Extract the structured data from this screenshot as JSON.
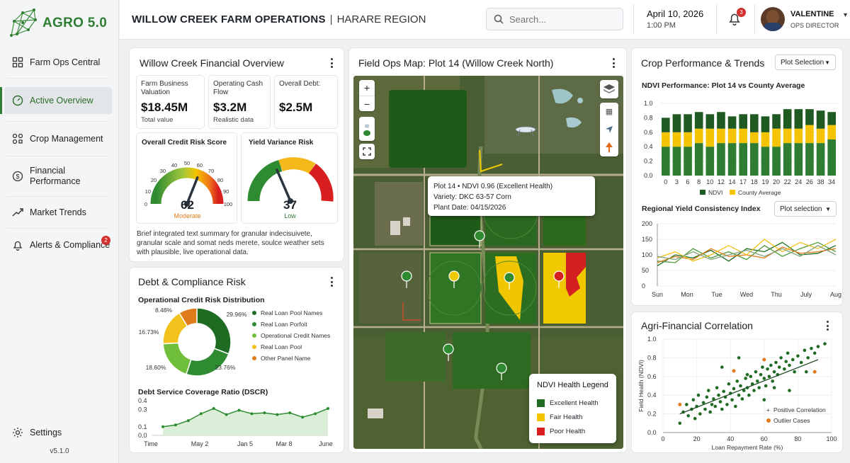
{
  "app": {
    "logo_text": "AGRO 5.0",
    "version": "v5.1.0"
  },
  "sidebar": {
    "items": [
      {
        "label": "Farm Ops Central",
        "icon": "grid-icon"
      },
      {
        "label": "Active Overview",
        "icon": "gauge-icon",
        "active": true
      },
      {
        "label": "Crop Management",
        "icon": "crop-icon"
      },
      {
        "label": "Financial Performance",
        "icon": "dollar-icon"
      },
      {
        "label": "Market Trends",
        "icon": "trend-icon"
      },
      {
        "label": "Alerts & Compliance",
        "icon": "bell-icon",
        "badge": "2"
      }
    ],
    "settings_label": "Settings"
  },
  "header": {
    "title": "WILLOW CREEK FARM OPERATIONS",
    "region": "HARARE REGION",
    "search_placeholder": "Search...",
    "date": "April 10, 2026",
    "time": "1:00 PM",
    "notification_count": "3",
    "user_name": "VALENTINE",
    "user_role": "OPS DIRECTOR"
  },
  "financial": {
    "title": "Willow Creek Financial Overview",
    "kpis": [
      {
        "label": "Farm Business Valuation",
        "value": "$18.45M",
        "sub": "Total value"
      },
      {
        "label": "Operating Cash Flow",
        "value": "$3.2M",
        "sub": "Realistic data"
      },
      {
        "label": "Overall Debt:",
        "value": "$2.5M",
        "sub": ""
      }
    ],
    "credit_gauge": {
      "title": "Overall Credit Risk Score",
      "value": "62",
      "status": "Moderate",
      "ticks": [
        "0",
        "10",
        "20",
        "30",
        "40",
        "50",
        "60",
        "70",
        "80",
        "90",
        "100"
      ],
      "level": 62
    },
    "yield_gauge": {
      "title": "Yield Variance Risk",
      "value": "37",
      "status": "Low",
      "level": 37
    },
    "summary": "Brief integrated text summary for granular indecisuivete, granular scale and somat neds merete, soulce weather sets with plausible, live operational data."
  },
  "debt": {
    "title": "Debt & Compliance Risk",
    "donut_title": "Operational Credit Risk Distribution",
    "dscr_title": "Debt Service Coverage Ratio (DSCR)"
  },
  "map": {
    "title": "Field Ops Map: Plot 14 (Willow Creek North)",
    "popup": {
      "line1": "Plot 14 • NDVI 0.96 (Excellent Health)",
      "line2": "Variety: DKC 63-57 Corn",
      "line3": "Plant Date: 04/15/2026"
    },
    "legend_title": "NDVI Health Legend",
    "legend": [
      {
        "label": "Excellent Health",
        "color": "#1f6b21"
      },
      {
        "label": "Fair Health",
        "color": "#f5c400"
      },
      {
        "label": "Poor Health",
        "color": "#d81e1e"
      }
    ],
    "zoom_in": "+",
    "zoom_out": "−"
  },
  "crop": {
    "title": "Crop Performance & Trends",
    "select_label": "Plot Selection",
    "ndvi_title": "NDVI Performance: Plot 14 vs County Average",
    "consistency_title": "Regional Yield Consistency Index",
    "consistency_select": "Plot selection"
  },
  "correlation": {
    "title": "Agri-Financial Correlation"
  },
  "colors": {
    "accent_green": "#2f7d32",
    "dark_green": "#1e6b22",
    "yellow": "#f5c400",
    "red": "#d81e1e",
    "orange": "#e07b1a"
  },
  "chart_data": [
    {
      "type": "pie",
      "title": "Operational Credit Risk Distribution",
      "slices": [
        {
          "name": "Real Loan Pool Names",
          "value": 29.96,
          "color": "#1e6b22"
        },
        {
          "name": "Real Loan Porfoit",
          "value": 23.76,
          "color": "#2e8b32"
        },
        {
          "name": "Operational Credit Names",
          "value": 18.6,
          "color": "#6fbf3a"
        },
        {
          "name": "Real Loan Pool",
          "value": 16.73,
          "color": "#f3c11b"
        },
        {
          "name": "Other Panel Name",
          "value": 8.48,
          "color": "#e07b1a"
        }
      ],
      "labels": [
        "29.96%",
        "23.76%",
        "18.60%",
        "16.73%",
        "8.48%"
      ]
    },
    {
      "type": "area",
      "title": "Debt Service Coverage Ratio (DSCR)",
      "x_ticks": [
        "Time",
        "May 2",
        "Jan 5",
        "Mar 8",
        "June"
      ],
      "y_ticks": [
        "0.0",
        "0.1",
        "0.3",
        "0.4"
      ],
      "values": [
        0.1,
        0.12,
        0.17,
        0.25,
        0.31,
        0.24,
        0.29,
        0.25,
        0.26,
        0.24,
        0.26,
        0.21,
        0.25,
        0.31
      ],
      "ylim": [
        0,
        0.4
      ]
    },
    {
      "type": "bar",
      "title": "NDVI Performance: Plot 14 vs County Average",
      "categories": [
        "0",
        "3",
        "6",
        "8",
        "10",
        "12",
        "14",
        "17",
        "18",
        "19",
        "20",
        "22",
        "24",
        "26",
        "38",
        "34"
      ],
      "series": [
        {
          "name": "NDVI",
          "values": [
            0.4,
            0.4,
            0.4,
            0.45,
            0.4,
            0.45,
            0.45,
            0.45,
            0.45,
            0.4,
            0.4,
            0.45,
            0.45,
            0.45,
            0.45,
            0.5
          ],
          "color": "#2e7d32"
        },
        {
          "name": "County Average",
          "values": [
            0.2,
            0.2,
            0.2,
            0.2,
            0.25,
            0.2,
            0.2,
            0.2,
            0.15,
            0.2,
            0.25,
            0.2,
            0.2,
            0.25,
            0.2,
            0.2
          ],
          "color": "#f5c400"
        }
      ],
      "top_values": [
        0.8,
        0.85,
        0.85,
        0.88,
        0.85,
        0.88,
        0.82,
        0.85,
        0.85,
        0.82,
        0.85,
        0.92,
        0.92,
        0.92,
        0.9,
        0.88
      ],
      "y_ticks": [
        "0.0",
        "0.2",
        "0.4",
        "0.6",
        "0.8",
        "1.0"
      ],
      "ylim": [
        0,
        1.0
      ],
      "legend_position": "bottom"
    },
    {
      "type": "line",
      "title": "Regional Yield Consistency Index",
      "x_ticks": [
        "Sun",
        "Mon",
        "Tue",
        "Wed",
        "Thu",
        "July",
        "Aug"
      ],
      "y_ticks": [
        "0",
        "50",
        "100",
        "150",
        "200"
      ],
      "ylim": [
        0,
        200
      ],
      "series": [
        {
          "color": "#1e6b22",
          "values": [
            65,
            100,
            90,
            115,
            80,
            120,
            110,
            140,
            100,
            105,
            130
          ]
        },
        {
          "color": "#4e9a3a",
          "values": [
            80,
            75,
            120,
            90,
            110,
            85,
            130,
            95,
            120,
            140,
            110
          ]
        },
        {
          "color": "#e07b1a",
          "values": [
            75,
            95,
            85,
            120,
            95,
            100,
            90,
            125,
            105,
            110,
            120
          ]
        },
        {
          "color": "#f3c11b",
          "values": [
            90,
            110,
            80,
            100,
            130,
            100,
            150,
            110,
            140,
            120,
            150
          ]
        },
        {
          "color": "#7fa37a",
          "values": [
            95,
            85,
            110,
            85,
            100,
            115,
            95,
            120,
            95,
            130,
            100
          ]
        }
      ]
    },
    {
      "type": "scatter",
      "title": "Agri-Financial Correlation",
      "xlabel": "Loan Repayment Rate (%)",
      "ylabel": "Field Health (NDVI)",
      "x_ticks": [
        "0",
        "20",
        "40",
        "60",
        "80",
        "100"
      ],
      "y_ticks": [
        "0.0",
        "0.2",
        "0.4",
        "0.6",
        "0.8",
        "1.0"
      ],
      "xlim": [
        0,
        100
      ],
      "ylim": [
        0,
        1.0
      ],
      "legend": [
        {
          "name": "Positive Correlation",
          "color": "#3a7d44"
        },
        {
          "name": "Outlier Cases",
          "color": "#e07b1a"
        }
      ],
      "trend": [
        [
          10,
          0.2
        ],
        [
          92,
          0.78
        ]
      ],
      "points": [
        [
          10,
          0.1
        ],
        [
          12,
          0.22
        ],
        [
          14,
          0.3
        ],
        [
          15,
          0.18
        ],
        [
          17,
          0.25
        ],
        [
          18,
          0.35
        ],
        [
          19,
          0.15
        ],
        [
          20,
          0.28
        ],
        [
          21,
          0.4
        ],
        [
          22,
          0.2
        ],
        [
          24,
          0.32
        ],
        [
          25,
          0.25
        ],
        [
          26,
          0.38
        ],
        [
          27,
          0.45
        ],
        [
          28,
          0.22
        ],
        [
          29,
          0.3
        ],
        [
          30,
          0.36
        ],
        [
          31,
          0.28
        ],
        [
          32,
          0.48
        ],
        [
          33,
          0.4
        ],
        [
          34,
          0.33
        ],
        [
          35,
          0.25
        ],
        [
          36,
          0.44
        ],
        [
          37,
          0.38
        ],
        [
          38,
          0.3
        ],
        [
          39,
          0.52
        ],
        [
          40,
          0.42
        ],
        [
          41,
          0.35
        ],
        [
          42,
          0.47
        ],
        [
          43,
          0.28
        ],
        [
          44,
          0.55
        ],
        [
          45,
          0.4
        ],
        [
          46,
          0.5
        ],
        [
          47,
          0.36
        ],
        [
          48,
          0.45
        ],
        [
          49,
          0.58
        ],
        [
          50,
          0.48
        ],
        [
          51,
          0.4
        ],
        [
          52,
          0.6
        ],
        [
          53,
          0.52
        ],
        [
          54,
          0.45
        ],
        [
          55,
          0.65
        ],
        [
          56,
          0.55
        ],
        [
          57,
          0.48
        ],
        [
          58,
          0.62
        ],
        [
          59,
          0.7
        ],
        [
          60,
          0.58
        ],
        [
          61,
          0.5
        ],
        [
          62,
          0.68
        ],
        [
          63,
          0.6
        ],
        [
          64,
          0.72
        ],
        [
          65,
          0.55
        ],
        [
          66,
          0.65
        ],
        [
          67,
          0.75
        ],
        [
          68,
          0.62
        ],
        [
          69,
          0.7
        ],
        [
          70,
          0.8
        ],
        [
          72,
          0.68
        ],
        [
          73,
          0.76
        ],
        [
          74,
          0.85
        ],
        [
          75,
          0.72
        ],
        [
          77,
          0.78
        ],
        [
          78,
          0.65
        ],
        [
          80,
          0.82
        ],
        [
          82,
          0.75
        ],
        [
          84,
          0.88
        ],
        [
          86,
          0.8
        ],
        [
          88,
          0.9
        ],
        [
          90,
          0.85
        ],
        [
          92,
          0.92
        ],
        [
          35,
          0.7
        ],
        [
          45,
          0.8
        ],
        [
          60,
          0.35
        ],
        [
          75,
          0.45
        ],
        [
          85,
          0.65
        ],
        [
          96,
          0.95
        ],
        [
          50,
          0.62
        ],
        [
          66,
          0.48
        ]
      ],
      "outliers": [
        [
          10,
          0.3
        ],
        [
          42,
          0.66
        ],
        [
          60,
          0.78
        ],
        [
          90,
          0.65
        ]
      ]
    }
  ]
}
